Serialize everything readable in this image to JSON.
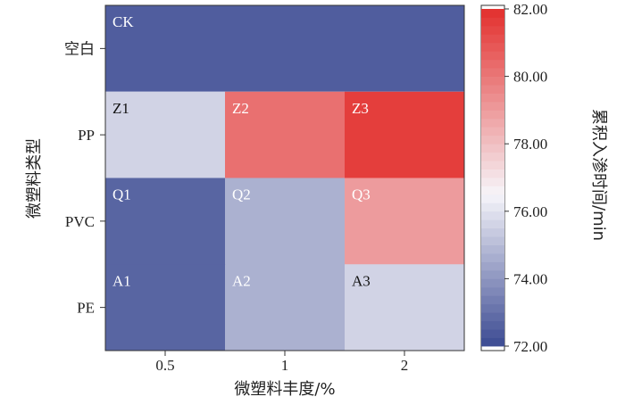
{
  "chart_data": {
    "type": "heatmap",
    "xlabel": "微塑料丰度/%",
    "ylabel": "微塑料类型",
    "colorbar_label": "累积入渗时间/min",
    "x_categories": [
      "0.5",
      "1",
      "2"
    ],
    "y_categories": [
      "空白",
      "PP",
      "PVC",
      "PE"
    ],
    "blank_row": {
      "label": "CK",
      "value": 72.5,
      "spans_all_columns": true
    },
    "rows": [
      {
        "category": "PP",
        "labels": [
          "Z1",
          "Z2",
          "Z3"
        ],
        "values": [
          75.6,
          80.2,
          81.6
        ]
      },
      {
        "category": "PVC",
        "labels": [
          "Q1",
          "Q2",
          "Q3"
        ],
        "values": [
          72.7,
          74.7,
          79.0
        ]
      },
      {
        "category": "PE",
        "labels": [
          "A1",
          "A2",
          "A3"
        ],
        "values": [
          72.7,
          74.7,
          75.6
        ]
      }
    ],
    "colorbar": {
      "min": 72.0,
      "max": 82.0,
      "ticks": [
        "72.00",
        "74.00",
        "76.00",
        "78.00",
        "80.00",
        "82.00"
      ],
      "low_color": "#3b4a92",
      "mid_color": "#f6f5fa",
      "high_color": "#e3302d"
    }
  }
}
